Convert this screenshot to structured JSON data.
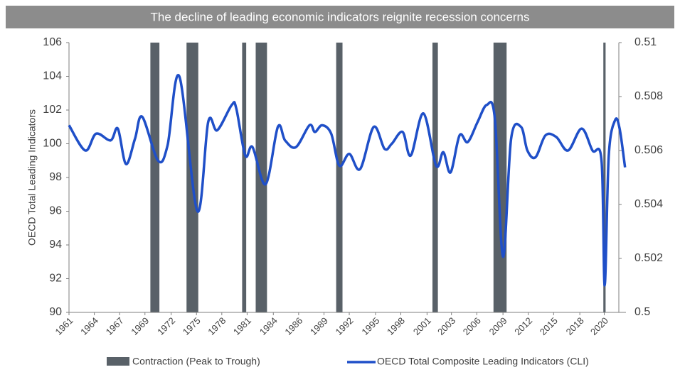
{
  "chart_data": {
    "type": "line",
    "title": "The decline of leading economic indicators reignite recession concerns",
    "ylabel": "OECD Total Leading Indicators",
    "xlim": [
      1961,
      2022.6
    ],
    "xticks": [
      1961,
      {
        "value": 1963.8,
        "label": "1964"
      },
      {
        "value": 1966.6,
        "label": "1967"
      },
      {
        "value": 1969.4,
        "label": "1969"
      },
      {
        "value": 1972.3,
        "label": "1972"
      },
      {
        "value": 1975.1,
        "label": "1975"
      },
      {
        "value": 1977.9,
        "label": "1978"
      },
      {
        "value": 1980.7,
        "label": "1981"
      },
      {
        "value": 1983.6,
        "label": "1984"
      },
      {
        "value": 1986.4,
        "label": "1986"
      },
      {
        "value": 1989.2,
        "label": "1989"
      },
      {
        "value": 1992.0,
        "label": "1992"
      },
      {
        "value": 1994.9,
        "label": "1995"
      },
      {
        "value": 1997.7,
        "label": "1998"
      },
      {
        "value": 2000.6,
        "label": "2001"
      },
      {
        "value": 2003.3,
        "label": "2003"
      },
      {
        "value": 2006.1,
        "label": "2006"
      },
      {
        "value": 2009.0,
        "label": "2009"
      },
      {
        "value": 2011.8,
        "label": "2012"
      },
      {
        "value": 2014.6,
        "label": "2015"
      },
      {
        "value": 2017.5,
        "label": "2018"
      },
      {
        "value": 2020.2,
        "label": "2020"
      }
    ],
    "ylim": [
      90,
      106
    ],
    "yticks": [
      90,
      92,
      94,
      96,
      98,
      100,
      102,
      104,
      106
    ],
    "y2lim": [
      0.5,
      0.51
    ],
    "y2ticks": [
      0.5,
      0.502,
      0.504,
      0.506,
      0.508,
      0.51
    ],
    "contraction": {
      "name": "Contraction (Peak to Trough)",
      "color": "#596168",
      "starts": [
        1970.0,
        1974.0,
        1980.15,
        1981.65,
        1990.55,
        2001.2,
        2007.95,
        2020.1
      ],
      "ends": [
        1971.0,
        1975.3,
        1980.6,
        1982.9,
        1991.25,
        2001.8,
        2009.4,
        2020.35
      ]
    },
    "series": [
      {
        "name": "OECD Total Composite Leading Indicators (CLI)",
        "color": "#1f4fc8",
        "x": [
          1961.0,
          1962.8,
          1964.0,
          1965.6,
          1966.4,
          1967.3,
          1968.3,
          1969.1,
          1970.85,
          1971.9,
          1973.2,
          1975.2,
          1976.4,
          1977.4,
          1979.0,
          1979.5,
          1980.5,
          1981.3,
          1982.75,
          1984.1,
          1984.9,
          1986.1,
          1987.6,
          1988.2,
          1989.0,
          1990.0,
          1990.9,
          1992.0,
          1993.2,
          1994.7,
          1995.9,
          1996.7,
          1997.9,
          1998.8,
          2000.2,
          2001.6,
          2002.4,
          2003.2,
          2004.2,
          2005.1,
          2006.2,
          2007.2,
          2008.1,
          2009.0,
          2009.9,
          2011.0,
          2011.7,
          2012.6,
          2013.7,
          2014.9,
          2016.2,
          2017.7,
          2018.9,
          2019.9,
          2020.25,
          2020.7,
          2021.4,
          2021.9,
          2022.5
        ],
        "values": [
          101.1,
          99.6,
          100.6,
          100.2,
          100.9,
          98.8,
          100.3,
          101.6,
          99.0,
          99.9,
          104.0,
          96.0,
          101.3,
          100.8,
          102.3,
          102.1,
          99.3,
          99.8,
          97.6,
          101.0,
          100.2,
          99.8,
          101.1,
          100.7,
          101.1,
          100.6,
          98.7,
          99.4,
          98.5,
          101.0,
          99.7,
          100.0,
          100.7,
          99.3,
          101.8,
          98.7,
          99.5,
          98.3,
          100.5,
          100.1,
          101.3,
          102.3,
          101.5,
          93.3,
          100.3,
          101.0,
          99.6,
          99.2,
          100.5,
          100.4,
          99.6,
          100.9,
          99.6,
          99.0,
          91.6,
          99.3,
          101.4,
          100.9,
          98.6
        ]
      }
    ]
  }
}
